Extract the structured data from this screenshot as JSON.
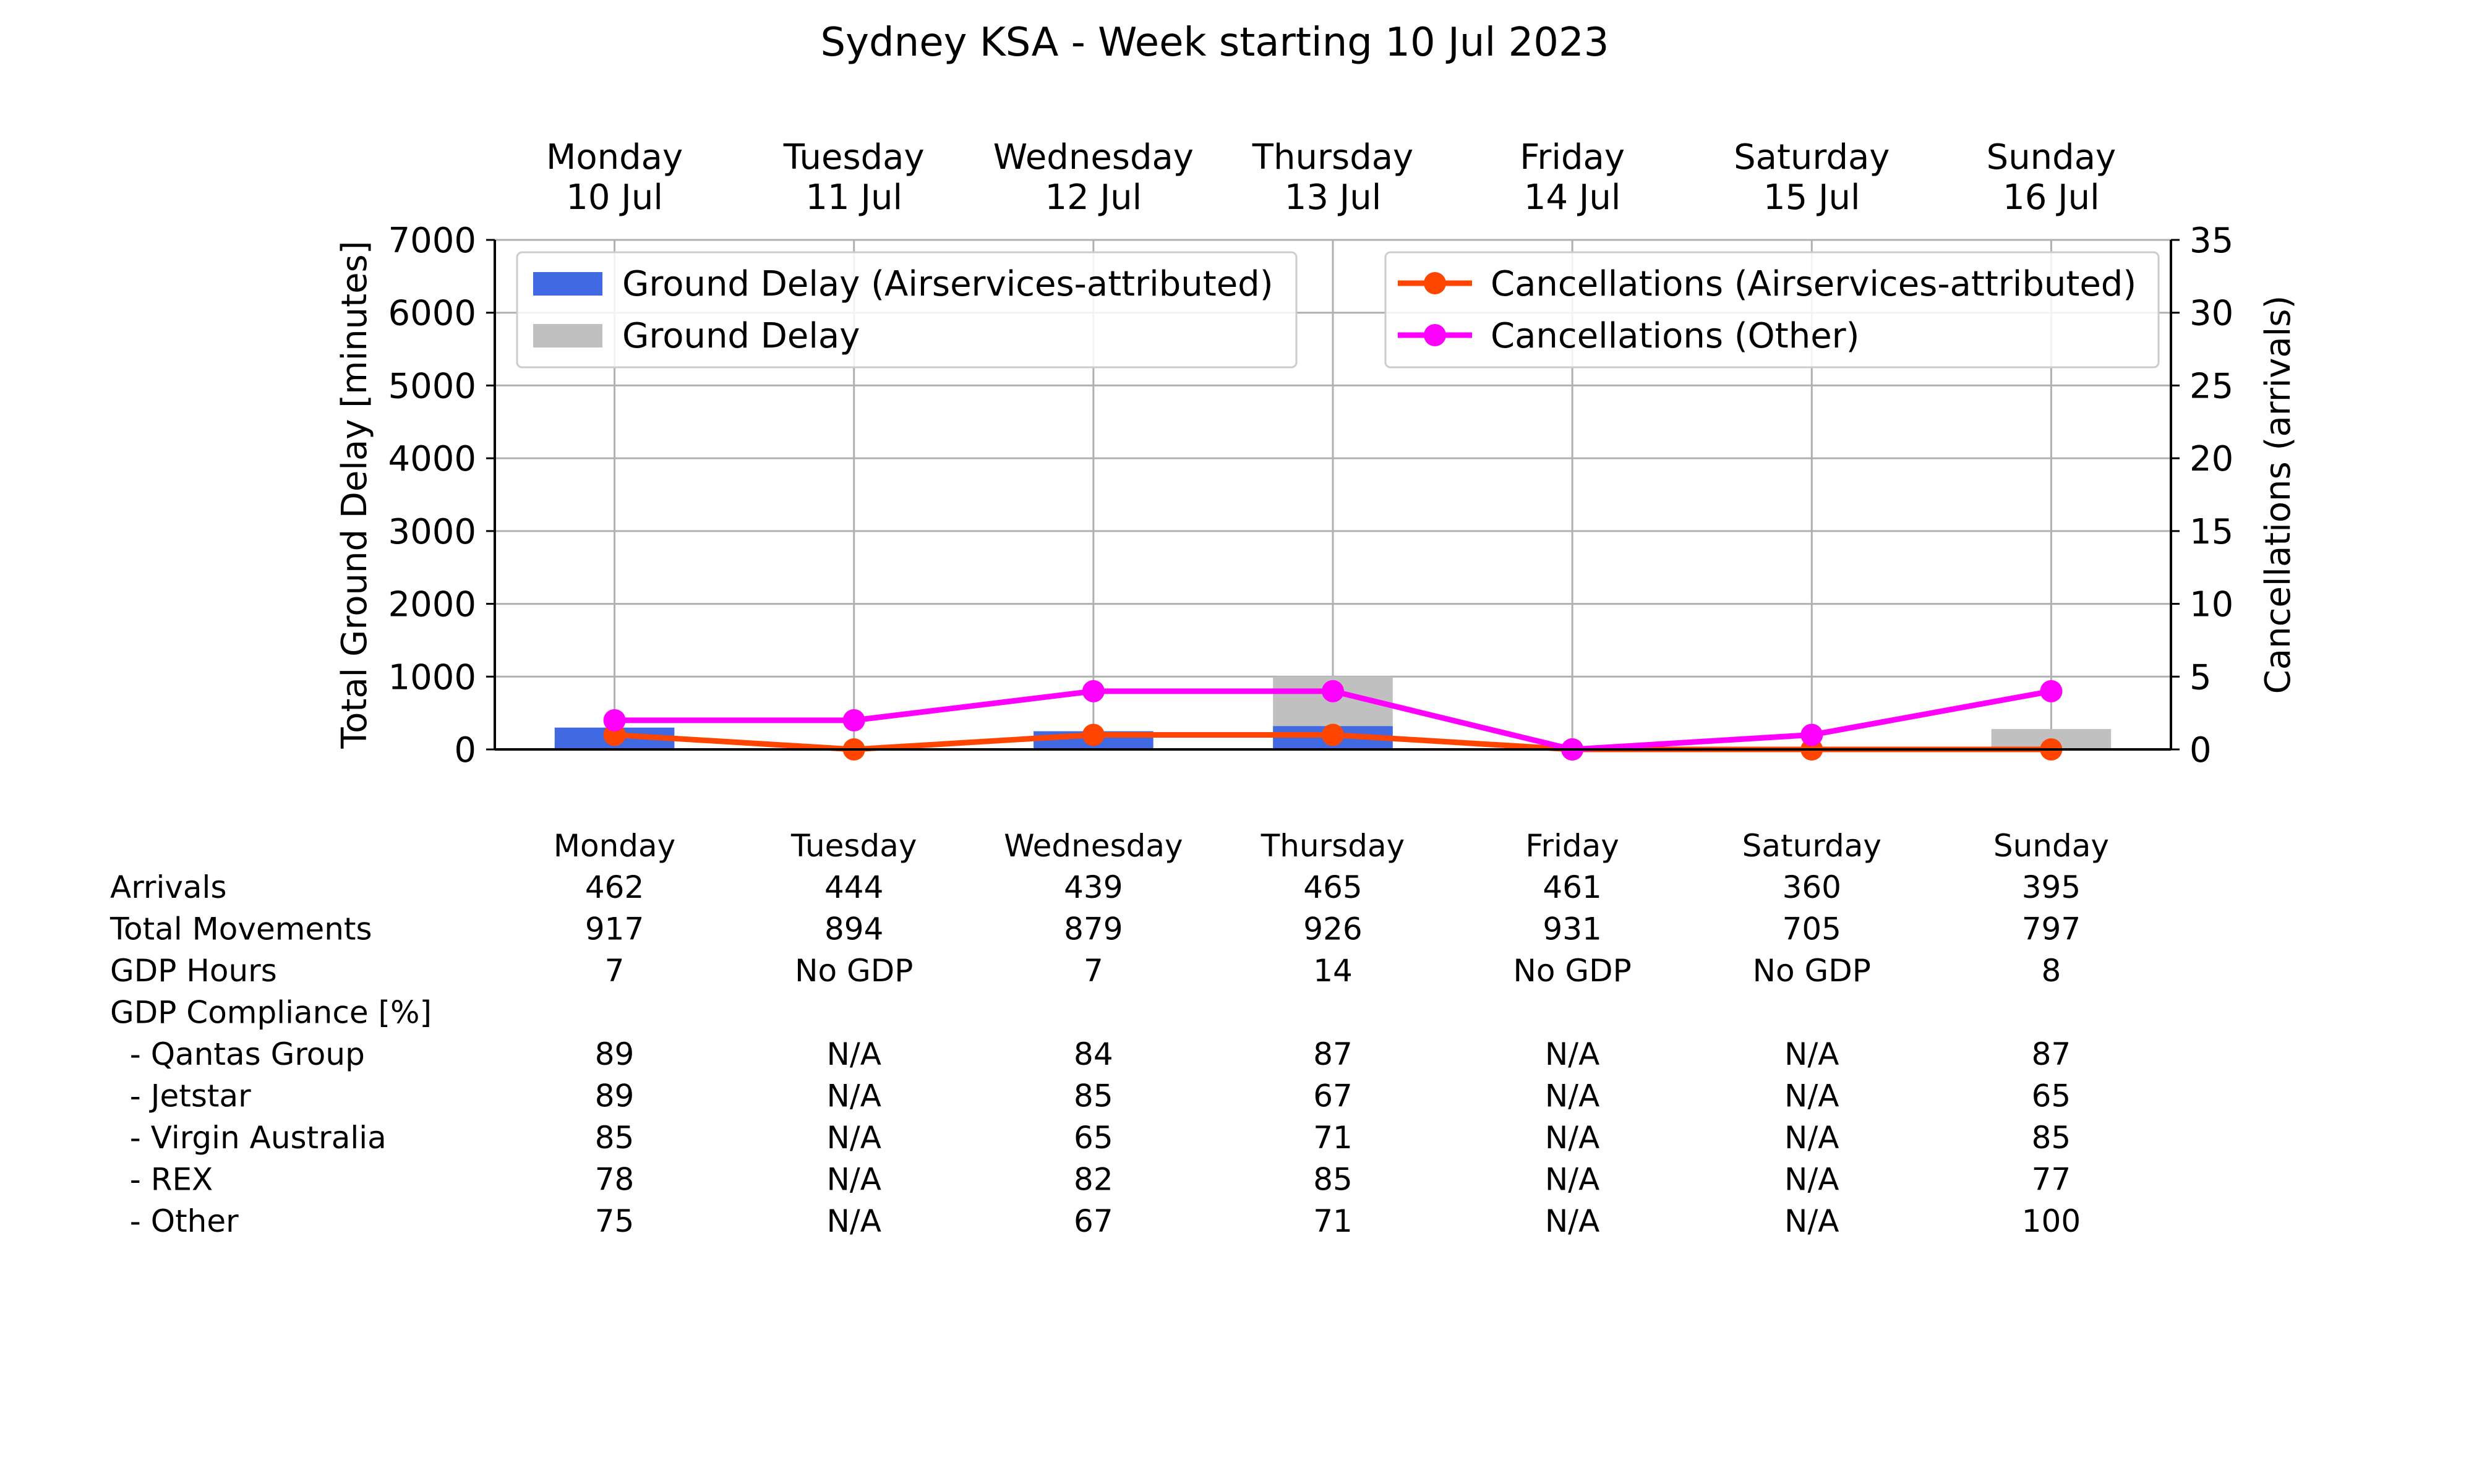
{
  "chart_data": {
    "type": "bar",
    "title": "Sydney KSA - Week starting 10 Jul 2023",
    "categories": [
      {
        "day": "Monday",
        "date": "10 Jul"
      },
      {
        "day": "Tuesday",
        "date": "11 Jul"
      },
      {
        "day": "Wednesday",
        "date": "12 Jul"
      },
      {
        "day": "Thursday",
        "date": "13 Jul"
      },
      {
        "day": "Friday",
        "date": "14 Jul"
      },
      {
        "day": "Saturday",
        "date": "15 Jul"
      },
      {
        "day": "Sunday",
        "date": "16 Jul"
      }
    ],
    "ylabel_left": "Total Ground Delay [minutes]",
    "ylabel_right": "Cancellations (arrivals)",
    "ylim_left": [
      0,
      7000
    ],
    "ylim_right": [
      0,
      35
    ],
    "yticks_left": [
      0,
      1000,
      2000,
      3000,
      4000,
      5000,
      6000,
      7000
    ],
    "yticks_right": [
      0,
      5,
      10,
      15,
      20,
      25,
      30,
      35
    ],
    "grid": true,
    "bar_series": [
      {
        "name": "Ground Delay",
        "color": "#c0c0c0",
        "values": [
          120,
          0,
          180,
          1000,
          0,
          0,
          280
        ]
      },
      {
        "name": "Ground Delay (Airservices-attributed)",
        "color": "#4169e1",
        "values": [
          300,
          0,
          250,
          320,
          0,
          0,
          0
        ]
      }
    ],
    "line_series": [
      {
        "name": "Cancellations (Airservices-attributed)",
        "color": "#ff4500",
        "values": [
          1,
          0,
          1,
          1,
          0,
          0,
          0
        ]
      },
      {
        "name": "Cancellations (Other)",
        "color": "#ff00ff",
        "values": [
          2,
          2,
          4,
          4,
          0,
          1,
          4
        ]
      }
    ],
    "legend_left": {
      "placement": "upper-left",
      "entries": [
        "Ground Delay (Airservices-attributed)",
        "Ground Delay"
      ]
    },
    "legend_right": {
      "placement": "upper-right",
      "entries": [
        "Cancellations (Airservices-attributed)",
        "Cancellations (Other)"
      ]
    }
  },
  "table": {
    "columns": [
      "Monday",
      "Tuesday",
      "Wednesday",
      "Thursday",
      "Friday",
      "Saturday",
      "Sunday"
    ],
    "rows": [
      {
        "label": "Arrivals",
        "values": [
          "462",
          "444",
          "439",
          "465",
          "461",
          "360",
          "395"
        ]
      },
      {
        "label": "Total Movements",
        "values": [
          "917",
          "894",
          "879",
          "926",
          "931",
          "705",
          "797"
        ]
      },
      {
        "label": "GDP Hours",
        "values": [
          "7",
          "No GDP",
          "7",
          "14",
          "No GDP",
          "No GDP",
          "8"
        ]
      },
      {
        "label": "GDP Compliance [%]",
        "values": [
          "",
          "",
          "",
          "",
          "",
          "",
          ""
        ]
      },
      {
        "label": "  - Qantas Group",
        "values": [
          "89",
          "N/A",
          "84",
          "87",
          "N/A",
          "N/A",
          "87"
        ]
      },
      {
        "label": "  - Jetstar",
        "values": [
          "89",
          "N/A",
          "85",
          "67",
          "N/A",
          "N/A",
          "65"
        ]
      },
      {
        "label": "  - Virgin Australia",
        "values": [
          "85",
          "N/A",
          "65",
          "71",
          "N/A",
          "N/A",
          "85"
        ]
      },
      {
        "label": "  - REX",
        "values": [
          "78",
          "N/A",
          "82",
          "85",
          "N/A",
          "N/A",
          "77"
        ]
      },
      {
        "label": "  - Other",
        "values": [
          "75",
          "N/A",
          "67",
          "71",
          "N/A",
          "N/A",
          "100"
        ]
      }
    ]
  }
}
